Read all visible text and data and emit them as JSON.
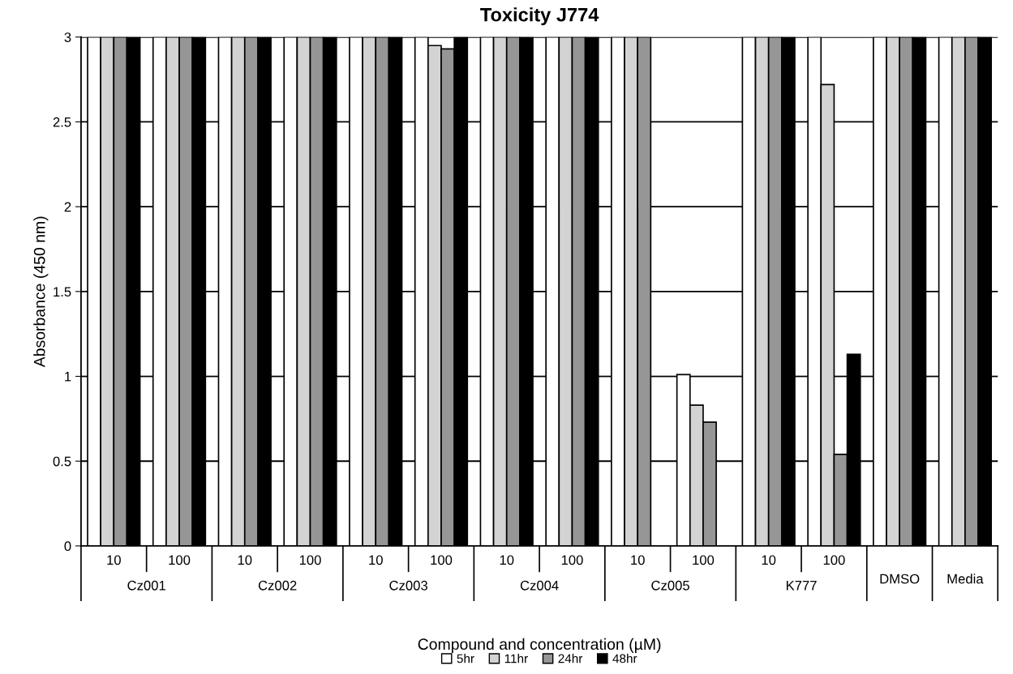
{
  "chart_data": {
    "type": "bar",
    "title": "Toxicity J774",
    "xlabel": "Compound and concentration (µM)",
    "ylabel": "Absorbance (450 nm)",
    "categories": [
      "10",
      "100",
      "10",
      "100",
      "10",
      "100",
      "10",
      "100",
      "10",
      "100",
      "10",
      "100",
      "DMSO",
      "Media"
    ],
    "annotations": [
      "Cz001",
      "Cz002",
      "Cz003",
      "Cz004",
      "Cz005",
      "K777"
    ],
    "series": [
      {
        "name": "5hr",
        "color": "#ffffff",
        "values": [
          3,
          3,
          3,
          3,
          3,
          3,
          3,
          3,
          3,
          1.01,
          3,
          3,
          3,
          3
        ]
      },
      {
        "name": "11hr",
        "color": "#d3d3d3",
        "values": [
          3,
          3,
          3,
          3,
          3,
          2.95,
          3,
          3,
          3,
          0.83,
          3,
          2.72,
          3,
          3
        ]
      },
      {
        "name": "24hr",
        "color": "#969696",
        "values": [
          3,
          3,
          3,
          3,
          3,
          2.93,
          3,
          3,
          3,
          0.73,
          3,
          0.54,
          3,
          3
        ]
      },
      {
        "name": "48hr",
        "color": "#000000",
        "values": [
          3,
          3,
          3,
          3,
          3,
          3,
          3,
          3,
          null,
          null,
          3,
          1.13,
          3,
          3
        ]
      }
    ],
    "ylim": [
      0,
      3
    ],
    "yticks": [
      0,
      0.5,
      1,
      1.5,
      2,
      2.5,
      3
    ],
    "grid": "y",
    "legend": "bottom"
  }
}
